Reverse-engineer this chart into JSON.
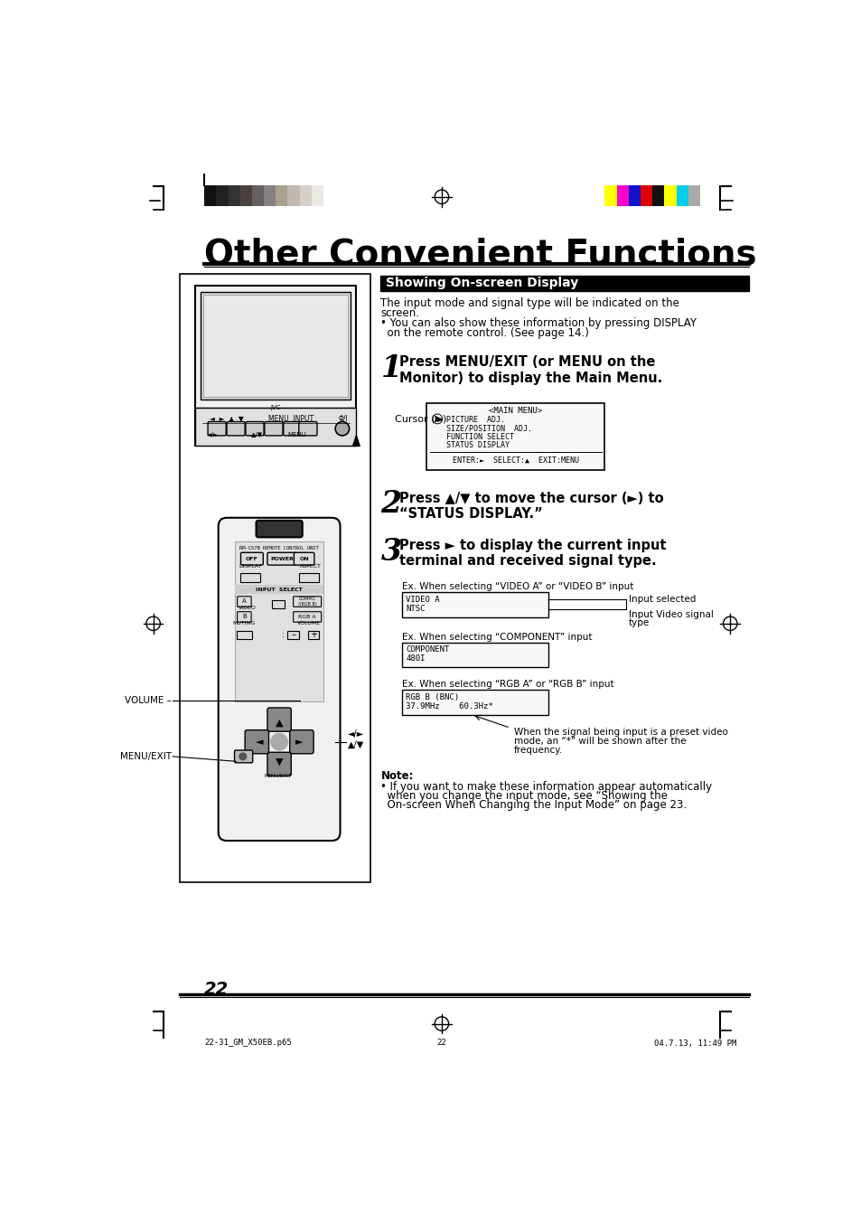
{
  "page_bg": "#ffffff",
  "title": "Other Convenient Functions",
  "section_header": "Showing On-screen Display",
  "section_header_bg": "#000000",
  "section_header_color": "#ffffff",
  "intro_line1": "The input mode and signal type will be indicated on the",
  "intro_line2": "screen.",
  "intro_bullet": "• You can also show these information by pressing DISPLAY",
  "intro_bullet2": "  on the remote control. (See page 14.)",
  "step1_num": "1",
  "step1_text": "Press MENU/EXIT (or MENU on the\nMonitor) to display the Main Menu.",
  "step2_num": "2",
  "step2_text": "Press ▲/▼ to move the cursor (►) to\n“STATUS DISPLAY.”",
  "step3_num": "3",
  "step3_text": "Press ► to display the current input\nterminal and received signal type.",
  "cursor_label": "Cursor (►)",
  "menu_title": "<MAIN MENU>",
  "menu_lines": [
    "PICTURE  ADJ.",
    "SIZE/POSITION  ADJ.",
    "FUNCTION SELECT",
    "STATUS DISPLAY"
  ],
  "menu_footer": "ENTER:►  SELECT:▲  EXIT:MENU",
  "ex1_label": "Ex. When selecting “VIDEO A” or “VIDEO B” input",
  "ex1_line1": "VIDEO A",
  "ex1_line2": "NTSC",
  "ex1_arrow1": "Input selected",
  "ex1_arrow2": "Input Video signal",
  "ex1_arrow3": "type",
  "ex2_label": "Ex. When selecting “COMPONENT” input",
  "ex2_line1": "COMPONENT",
  "ex2_line2": "480I",
  "ex3_label": "Ex. When selecting “RGB A” or “RGB B” input",
  "ex3_line1": "RGB B (BNC)",
  "ex3_line2": "37.9MHz    60.3Hz*",
  "ex3_note1": "When the signal being input is a preset video",
  "ex3_note2": "mode, an “*” will be shown after the",
  "ex3_note3": "frequency.",
  "note_head": "Note:",
  "note_body": "• If you want to make these information appear automatically",
  "note_body2": "  when you change the input mode, see “Showing the",
  "note_body3": "  On-screen When Changing the Input Mode” on page 23.",
  "page_number": "22",
  "footer_left": "22-31_GM_X50EB.p65",
  "footer_center": "22",
  "footer_right": "04.7.13, 11:49 PM",
  "gray_colors": [
    "#111111",
    "#222222",
    "#333333",
    "#4a4040",
    "#666060",
    "#888080",
    "#aaa090",
    "#c0b8b0",
    "#d8d0c8",
    "#ece8e4",
    "#ffffff"
  ],
  "color_bars": [
    "#ffff00",
    "#ff00cc",
    "#1111cc",
    "#dd0000",
    "#111111",
    "#ffff00",
    "#00ccee",
    "#aaaaaa"
  ]
}
